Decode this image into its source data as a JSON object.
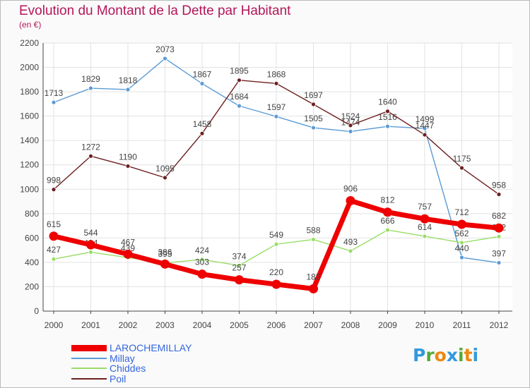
{
  "chart_data": {
    "type": "line",
    "title": "Evolution du Montant de la Dette par Habitant",
    "subtitle": "(en €)",
    "xlabel": "",
    "ylabel": "",
    "ylim": [
      0,
      2200
    ],
    "yticks": [
      "0",
      "200",
      "400",
      "600",
      "800",
      "1000",
      "1200",
      "1400",
      "1600",
      "1800",
      "2000",
      "2200"
    ],
    "grid": true,
    "legend_position": "bottom-left",
    "categories": [
      "2000",
      "2001",
      "2002",
      "2003",
      "2004",
      "2005",
      "2006",
      "2007",
      "2008",
      "2009",
      "2010",
      "2011",
      "2012"
    ],
    "series": [
      {
        "name": "Millay",
        "color": "#5b9bd5",
        "values": [
          1713,
          1829,
          1818,
          2073,
          1867,
          1684,
          1597,
          1505,
          1474,
          1516,
          1499,
          440,
          397
        ],
        "labels": [
          "1713",
          "1829",
          "1818",
          "2073",
          "1867",
          "1684",
          "1597",
          "1505",
          "1474",
          "1516",
          "1499",
          "440",
          "397"
        ]
      },
      {
        "name": "Poil",
        "color": "#6d1f1f",
        "values": [
          998,
          1272,
          1190,
          1095,
          1458,
          1895,
          1868,
          1697,
          1524,
          1640,
          1447,
          1175,
          958
        ],
        "labels": [
          "998",
          "1272",
          "1190",
          "1095",
          "1458",
          "1895",
          "1868",
          "1697",
          "1524",
          "1640",
          "1447",
          "1175",
          "958"
        ]
      },
      {
        "name": "Chiddes",
        "color": "#99dd66",
        "values": [
          427,
          484,
          439,
          395,
          424,
          374,
          549,
          588,
          493,
          666,
          614,
          562,
          612
        ],
        "labels": [
          "427",
          "484",
          "439",
          "395",
          "424",
          "374",
          "549",
          "588",
          "493",
          "666",
          "614",
          "562",
          "612"
        ]
      },
      {
        "name": "LAROCHEMILLAY",
        "color": "#ee0000",
        "values": [
          615,
          544,
          467,
          386,
          303,
          257,
          220,
          183,
          906,
          812,
          757,
          712,
          682
        ],
        "labels": [
          "615",
          "544",
          "467",
          "386",
          "303",
          "257",
          "220",
          "183",
          "906",
          "812",
          "757",
          "712",
          "682"
        ]
      }
    ],
    "legend": [
      {
        "name": "LAROCHEMILLAY",
        "color": "#ee0000"
      },
      {
        "name": "Millay",
        "color": "#5b9bd5"
      },
      {
        "name": "Chiddes",
        "color": "#99dd66"
      },
      {
        "name": "Poil",
        "color": "#6d1f1f"
      }
    ]
  },
  "brand": {
    "letters": [
      "P",
      "r",
      "o",
      "x",
      "i",
      "t",
      "i"
    ],
    "colors": [
      "#3399dd",
      "#55aa33",
      "#ee8811",
      "#3399dd",
      "#55aa33",
      "#ee8811",
      "#3399dd"
    ]
  }
}
